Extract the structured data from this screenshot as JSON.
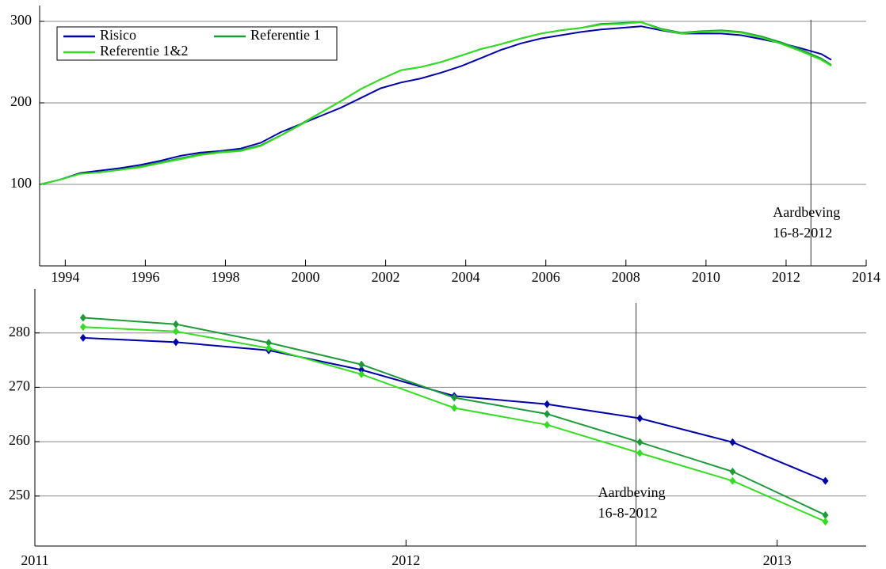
{
  "chart_data": [
    {
      "type": "line",
      "x": [
        1993.38,
        1993.88,
        1994.38,
        1994.88,
        1995.38,
        1995.88,
        1996.38,
        1996.88,
        1997.38,
        1997.88,
        1998.38,
        1998.88,
        1999.38,
        1999.88,
        2000.38,
        2000.88,
        2001.38,
        2001.88,
        2002.38,
        2002.88,
        2003.38,
        2003.88,
        2004.38,
        2004.88,
        2005.38,
        2005.88,
        2006.38,
        2006.88,
        2007.38,
        2007.88,
        2008.38,
        2008.88,
        2009.38,
        2009.88,
        2010.38,
        2010.88,
        2011.38,
        2011.88,
        2012.38,
        2012.88,
        2013.13
      ],
      "series": [
        {
          "name": "Risico",
          "color": "#0000aa",
          "values": [
            100,
            106,
            114,
            117,
            120,
            124,
            129,
            135,
            139,
            141,
            144,
            151,
            164,
            174,
            184,
            194,
            206,
            218,
            225,
            230,
            237,
            245,
            255,
            265,
            273,
            279,
            283,
            287,
            290,
            292,
            294,
            289,
            285,
            285,
            285,
            283,
            278.3,
            273.2,
            266.9,
            259.9,
            252.8
          ]
        },
        {
          "name": "Referentie 1",
          "color": "#1f9a3a",
          "values": [
            100,
            106,
            113,
            115,
            118,
            122,
            127,
            132,
            137,
            140,
            142,
            148,
            160,
            174,
            188,
            202,
            217,
            229,
            240,
            244,
            250,
            258,
            266,
            272,
            279,
            285,
            289,
            292,
            297,
            298,
            299,
            291,
            286,
            288,
            289,
            287,
            281.6,
            274.2,
            265.1,
            254.5,
            246.5
          ]
        },
        {
          "name": "Referentie 1&2",
          "color": "#33dd22",
          "values": [
            100,
            106,
            113,
            115,
            118,
            121,
            126,
            131,
            136,
            139,
            141,
            147,
            160,
            173,
            188,
            202,
            217,
            229,
            240,
            244,
            250,
            258,
            266,
            272,
            279,
            285,
            289,
            292,
            296,
            297,
            299,
            290,
            285,
            287,
            288,
            286,
            280.3,
            272.4,
            263.1,
            252.8,
            245.3
          ]
        }
      ],
      "xlim": [
        1993.36,
        2014
      ],
      "xticks": [
        1994,
        1996,
        1998,
        2000,
        2002,
        2004,
        2006,
        2008,
        2010,
        2012,
        2014
      ],
      "ylim": [
        0,
        300
      ],
      "yticks": [
        100,
        200,
        300
      ],
      "grid": true,
      "legend": "upper left",
      "event": {
        "x": 2012.62,
        "label": [
          "Aardbeving",
          "16-8-2012"
        ]
      }
    },
    {
      "type": "line",
      "marker": "diamond",
      "x": [
        2011.13,
        2011.38,
        2011.63,
        2011.88,
        2012.13,
        2012.38,
        2012.63,
        2012.88,
        2013.13
      ],
      "series": [
        {
          "color": "#0000aa",
          "values": [
            279.1,
            278.3,
            276.8,
            273.2,
            268.4,
            266.9,
            264.3,
            259.9,
            252.8
          ]
        },
        {
          "color": "#1f9a3a",
          "values": [
            282.8,
            281.6,
            278.2,
            274.2,
            268.1,
            265.1,
            259.9,
            254.5,
            246.5
          ]
        },
        {
          "color": "#33dd22",
          "values": [
            281.1,
            280.3,
            277.2,
            272.4,
            266.2,
            263.1,
            257.9,
            252.8,
            245.3
          ]
        }
      ],
      "xlim": [
        2011,
        2013.24
      ],
      "xticks": [
        2011,
        2012,
        2013
      ],
      "ylim": [
        240.8,
        285.2
      ],
      "yticks": [
        250,
        260,
        270,
        280
      ],
      "grid": true,
      "event": {
        "x": 2012.62,
        "label": [
          "Aardbeving",
          "16-8-2012"
        ]
      }
    }
  ]
}
